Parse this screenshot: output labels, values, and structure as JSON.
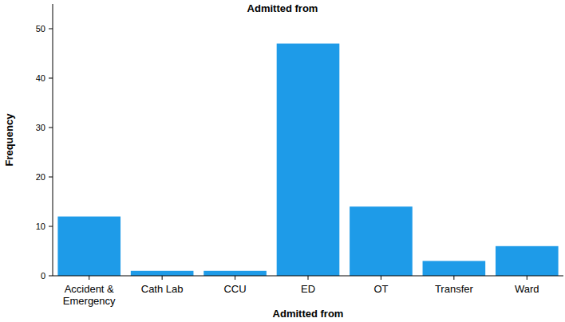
{
  "chart_data": {
    "type": "bar",
    "title": "Admitted from",
    "x_label": "Admitted from",
    "y_label": "Frequency",
    "categories": [
      "Accident & Emergency",
      "Cath Lab",
      "CCU",
      "ED",
      "OT",
      "Transfer",
      "Ward"
    ],
    "values": [
      12,
      1,
      1,
      47,
      14,
      3,
      6
    ],
    "color": "#1e9be8",
    "ylim": [
      0,
      55
    ],
    "yticks": [
      0,
      10,
      20,
      30,
      40,
      50
    ],
    "grid": false
  }
}
